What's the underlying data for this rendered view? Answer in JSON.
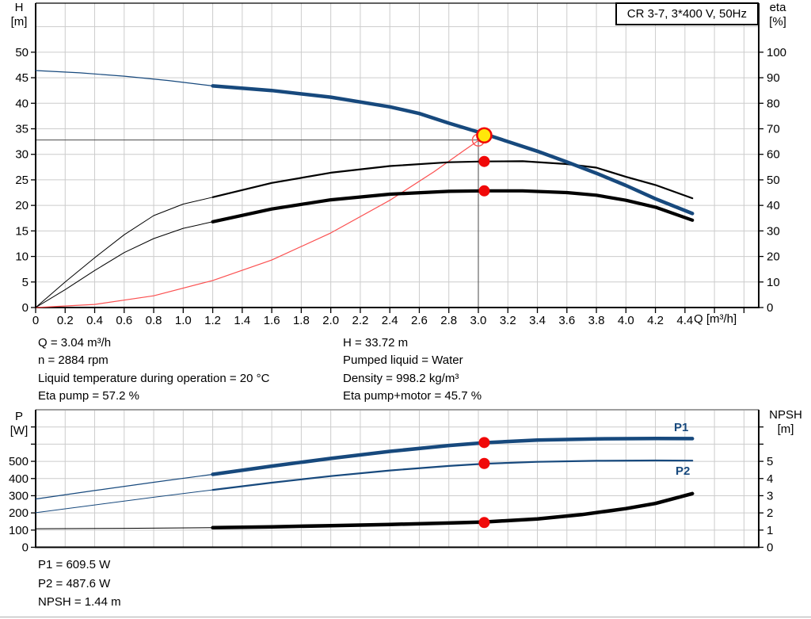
{
  "title_box": {
    "label": "CR 3-7, 3*400 V, 50Hz"
  },
  "annotations": {
    "left": [
      "Q = 3.04 m³/h",
      "n = 2884 rpm",
      "Liquid temperature during operation = 20 °C",
      "Eta pump = 57.2 %"
    ],
    "right": [
      "H = 33.72 m",
      "Pumped liquid = Water",
      "Density = 998.2 kg/m³",
      "Eta pump+motor = 45.7 %"
    ],
    "bottom": [
      "P1 = 609.5 W",
      "P2 = 487.6 W",
      "NPSH = 1.44 m"
    ]
  },
  "colors": {
    "curve_blue": "#17497d",
    "curve_black": "#000000",
    "marker_red": "#f00808",
    "system_red": "#fb5050",
    "duty_yellow": "#ffe60a",
    "grid_gray": "#cccccc",
    "crosshair_gray": "#4a4a4a"
  },
  "chart_data": [
    {
      "id": "top",
      "type": "line",
      "title": "CR 3-7, 3*400 V, 50Hz",
      "x_axis": {
        "label": "Q [m³/h]",
        "min": 0,
        "max": 4.9,
        "show_labels": true,
        "grid": true,
        "ticks": [
          [
            0,
            "0"
          ],
          [
            0.2,
            "0.2"
          ],
          [
            0.4,
            "0.4"
          ],
          [
            0.6,
            "0.6"
          ],
          [
            0.8,
            "0.8"
          ],
          [
            1,
            "1.0"
          ],
          [
            1.2,
            "1.2"
          ],
          [
            1.4,
            "1.4"
          ],
          [
            1.6,
            "1.6"
          ],
          [
            1.8,
            "1.8"
          ],
          [
            2,
            "2.0"
          ],
          [
            2.2,
            "2.2"
          ],
          [
            2.4,
            "2.4"
          ],
          [
            2.6,
            "2.6"
          ],
          [
            2.8,
            "2.8"
          ],
          [
            3,
            "3.0"
          ],
          [
            3.2,
            "3.2"
          ],
          [
            3.4,
            "3.4"
          ],
          [
            3.6,
            "3.6"
          ],
          [
            3.8,
            "3.8"
          ],
          [
            4,
            "4.0"
          ],
          [
            4.2,
            "4.2"
          ],
          [
            4.4,
            "4.4"
          ],
          [
            4.6,
            ""
          ],
          [
            4.8,
            ""
          ]
        ]
      },
      "y_left": {
        "label": "H [m]",
        "min": 0,
        "max": 59.6,
        "ticks": [
          [
            0,
            "0"
          ],
          [
            5,
            "5"
          ],
          [
            10,
            "10"
          ],
          [
            15,
            "15"
          ],
          [
            20,
            "20"
          ],
          [
            25,
            "25"
          ],
          [
            30,
            "30"
          ],
          [
            35,
            "35"
          ],
          [
            40,
            "40"
          ],
          [
            45,
            "45"
          ],
          [
            50,
            "50"
          ]
        ],
        "grid_extra": [
          55
        ]
      },
      "y_right": {
        "label": "eta [%]",
        "min": 0,
        "max": 119.2,
        "ticks": [
          [
            0,
            "0"
          ],
          [
            10,
            "10"
          ],
          [
            20,
            "20"
          ],
          [
            30,
            "30"
          ],
          [
            40,
            "40"
          ],
          [
            50,
            "50"
          ],
          [
            60,
            "60"
          ],
          [
            70,
            "70"
          ],
          [
            80,
            "80"
          ],
          [
            90,
            "90"
          ],
          [
            100,
            "100"
          ]
        ]
      },
      "crosshair": {
        "q": 3.0,
        "value": 32.8
      },
      "series": [
        {
          "name": "system-curve",
          "axis": "left",
          "color": "#fb5050",
          "segments": [
            {
              "w": 1.2,
              "pts": [
                [
                  0,
                  0
                ],
                [
                  0.4,
                  0.6
                ],
                [
                  0.8,
                  2.3
                ],
                [
                  1.2,
                  5.3
                ],
                [
                  1.6,
                  9.3
                ],
                [
                  2.0,
                  14.6
                ],
                [
                  2.4,
                  21.0
                ],
                [
                  2.7,
                  26.6
                ],
                [
                  2.9,
                  30.7
                ],
                [
                  3.02,
                  33.1
                ]
              ]
            }
          ]
        },
        {
          "name": "eta-pump-curve",
          "axis": "right",
          "color": "#000000",
          "segments": [
            {
              "w": 1,
              "pts": [
                [
                  0,
                  0
                ],
                [
                  0.2,
                  10
                ],
                [
                  0.4,
                  19.5
                ],
                [
                  0.6,
                  28.5
                ],
                [
                  0.8,
                  36
                ],
                [
                  1.0,
                  40.5
                ],
                [
                  1.2,
                  43.2
                ]
              ]
            },
            {
              "w": 2.2,
              "pts": [
                [
                  1.2,
                  43.2
                ],
                [
                  1.6,
                  48.8
                ],
                [
                  2.0,
                  52.8
                ],
                [
                  2.4,
                  55.4
                ],
                [
                  2.8,
                  56.9
                ],
                [
                  3.04,
                  57.2
                ],
                [
                  3.3,
                  57.3
                ],
                [
                  3.6,
                  56.2
                ],
                [
                  3.8,
                  54.8
                ],
                [
                  4.0,
                  51.2
                ],
                [
                  4.2,
                  48.0
                ],
                [
                  4.45,
                  42.8
                ]
              ]
            }
          ]
        },
        {
          "name": "eta-pump-motor-curve",
          "axis": "right",
          "color": "#000000",
          "segments": [
            {
              "w": 1,
              "pts": [
                [
                  0,
                  0
                ],
                [
                  0.2,
                  7
                ],
                [
                  0.4,
                  14.5
                ],
                [
                  0.6,
                  21.5
                ],
                [
                  0.8,
                  27
                ],
                [
                  1.0,
                  31
                ],
                [
                  1.2,
                  33.6
                ]
              ]
            },
            {
              "w": 4.2,
              "pts": [
                [
                  1.2,
                  33.6
                ],
                [
                  1.6,
                  38.6
                ],
                [
                  2.0,
                  42.2
                ],
                [
                  2.4,
                  44.4
                ],
                [
                  2.8,
                  45.5
                ],
                [
                  3.04,
                  45.7
                ],
                [
                  3.3,
                  45.7
                ],
                [
                  3.6,
                  45.0
                ],
                [
                  3.8,
                  44.0
                ],
                [
                  4.0,
                  42.0
                ],
                [
                  4.2,
                  39.3
                ],
                [
                  4.45,
                  34.2
                ]
              ]
            }
          ]
        },
        {
          "name": "qh-curve",
          "axis": "left",
          "color": "#17497d",
          "segments": [
            {
              "w": 1.2,
              "pts": [
                [
                  0,
                  46.4
                ],
                [
                  0.3,
                  45.95
                ],
                [
                  0.6,
                  45.3
                ],
                [
                  0.9,
                  44.45
                ],
                [
                  1.2,
                  43.4
                ]
              ]
            },
            {
              "w": 4.5,
              "pts": [
                [
                  1.2,
                  43.4
                ],
                [
                  1.6,
                  42.5
                ],
                [
                  2.0,
                  41.2
                ],
                [
                  2.4,
                  39.3
                ],
                [
                  2.6,
                  38.0
                ],
                [
                  2.8,
                  36.1
                ],
                [
                  3.04,
                  34.0
                ],
                [
                  3.2,
                  32.5
                ],
                [
                  3.4,
                  30.6
                ],
                [
                  3.6,
                  28.5
                ],
                [
                  3.8,
                  26.3
                ],
                [
                  4.0,
                  23.9
                ],
                [
                  4.2,
                  21.3
                ],
                [
                  4.45,
                  18.4
                ]
              ]
            }
          ]
        }
      ],
      "markers": [
        {
          "name": "eta-pump-point",
          "shape": "dot",
          "q": 3.04,
          "value": 57.2,
          "axis": "right",
          "r": 7,
          "fill": "#f00808"
        },
        {
          "name": "eta-pump-motor-point",
          "shape": "dot",
          "q": 3.04,
          "value": 45.7,
          "axis": "right",
          "r": 7,
          "fill": "#f00808"
        },
        {
          "name": "system-duty-circle",
          "shape": "open",
          "q": 3.0,
          "value": 32.8,
          "axis": "left",
          "r": 7.5,
          "stroke": "#fb5050"
        },
        {
          "name": "duty-point",
          "shape": "duty",
          "q": 3.04,
          "value": 33.72,
          "axis": "left",
          "r": 9,
          "fill": "#ffe60a",
          "stroke": "#f00808"
        }
      ]
    },
    {
      "id": "bottom",
      "type": "line",
      "x_axis": {
        "label": "",
        "min": 0,
        "max": 4.9,
        "show_labels": false,
        "grid": true,
        "ticks": [
          [
            0,
            ""
          ],
          [
            0.2,
            ""
          ],
          [
            0.4,
            ""
          ],
          [
            0.6,
            ""
          ],
          [
            0.8,
            ""
          ],
          [
            1,
            ""
          ],
          [
            1.2,
            ""
          ],
          [
            1.4,
            ""
          ],
          [
            1.6,
            ""
          ],
          [
            1.8,
            ""
          ],
          [
            2,
            ""
          ],
          [
            2.2,
            ""
          ],
          [
            2.4,
            ""
          ],
          [
            2.6,
            ""
          ],
          [
            2.8,
            ""
          ],
          [
            3,
            ""
          ],
          [
            3.2,
            ""
          ],
          [
            3.4,
            ""
          ],
          [
            3.6,
            ""
          ],
          [
            3.8,
            ""
          ],
          [
            4,
            ""
          ],
          [
            4.2,
            ""
          ],
          [
            4.4,
            ""
          ],
          [
            4.6,
            ""
          ],
          [
            4.8,
            ""
          ]
        ]
      },
      "y_left": {
        "label": "P [W]",
        "min": 0,
        "max": 800,
        "ticks": [
          [
            0,
            "0"
          ],
          [
            100,
            "100"
          ],
          [
            200,
            "200"
          ],
          [
            300,
            "300"
          ],
          [
            400,
            "400"
          ],
          [
            500,
            "500"
          ],
          [
            600,
            ""
          ],
          [
            700,
            ""
          ]
        ],
        "grid_extra": []
      },
      "y_right": {
        "label": "NPSH [m]",
        "min": 0,
        "max": 8,
        "ticks": [
          [
            0,
            "0"
          ],
          [
            1,
            "1"
          ],
          [
            2,
            "2"
          ],
          [
            3,
            "3"
          ],
          [
            4,
            "4"
          ],
          [
            5,
            "5"
          ],
          [
            6,
            ""
          ],
          [
            7,
            ""
          ]
        ]
      },
      "curve_labels": {
        "p1": "P1",
        "p2": "P2"
      },
      "series": [
        {
          "name": "p1-curve",
          "axis": "left",
          "color": "#17497d",
          "segments": [
            {
              "w": 1.2,
              "pts": [
                [
                  0,
                  281
                ],
                [
                  0.4,
                  330
                ],
                [
                  0.8,
                  378
                ],
                [
                  1.2,
                  424
                ]
              ]
            },
            {
              "w": 4.5,
              "pts": [
                [
                  1.2,
                  424
                ],
                [
                  1.6,
                  472
                ],
                [
                  2.0,
                  517
                ],
                [
                  2.4,
                  558
                ],
                [
                  2.8,
                  592
                ],
                [
                  3.04,
                  608
                ],
                [
                  3.4,
                  624
                ],
                [
                  3.8,
                  631
                ],
                [
                  4.2,
                  633
                ],
                [
                  4.45,
                  632
                ]
              ]
            }
          ]
        },
        {
          "name": "p2-curve",
          "axis": "left",
          "color": "#17497d",
          "segments": [
            {
              "w": 1,
              "pts": [
                [
                  0,
                  201
                ],
                [
                  0.4,
                  246
                ],
                [
                  0.8,
                  291
                ],
                [
                  1.2,
                  334
                ]
              ]
            },
            {
              "w": 2.2,
              "pts": [
                [
                  1.2,
                  334
                ],
                [
                  1.6,
                  376
                ],
                [
                  2.0,
                  414
                ],
                [
                  2.4,
                  447
                ],
                [
                  2.8,
                  473
                ],
                [
                  3.04,
                  486
                ],
                [
                  3.4,
                  497
                ],
                [
                  3.8,
                  503
                ],
                [
                  4.2,
                  505
                ],
                [
                  4.45,
                  504
                ]
              ]
            }
          ]
        },
        {
          "name": "npsh-curve",
          "axis": "right",
          "color": "#000000",
          "segments": [
            {
              "w": 1,
              "pts": [
                [
                  0,
                  1.08
                ],
                [
                  0.6,
                  1.1
                ],
                [
                  1.2,
                  1.14
                ]
              ]
            },
            {
              "w": 4.5,
              "pts": [
                [
                  1.2,
                  1.14
                ],
                [
                  1.6,
                  1.19
                ],
                [
                  2.0,
                  1.26
                ],
                [
                  2.4,
                  1.33
                ],
                [
                  2.8,
                  1.41
                ],
                [
                  3.04,
                  1.47
                ],
                [
                  3.4,
                  1.65
                ],
                [
                  3.7,
                  1.9
                ],
                [
                  4.0,
                  2.25
                ],
                [
                  4.2,
                  2.55
                ],
                [
                  4.45,
                  3.12
                ]
              ]
            }
          ]
        }
      ],
      "markers": [
        {
          "name": "p1-point",
          "shape": "dot",
          "q": 3.04,
          "value": 609.5,
          "axis": "left",
          "r": 7,
          "fill": "#f00808"
        },
        {
          "name": "p2-point",
          "shape": "dot",
          "q": 3.04,
          "value": 487.6,
          "axis": "left",
          "r": 7,
          "fill": "#f00808"
        },
        {
          "name": "npsh-point",
          "shape": "dot",
          "q": 3.04,
          "value": 1.44,
          "axis": "right",
          "r": 7,
          "fill": "#f00808"
        }
      ]
    }
  ],
  "axis_titles": {
    "h_line1": "H",
    "h_line2": "[m]",
    "eta_line1": "eta",
    "eta_line2": "[%]",
    "q": "Q [m³/h]",
    "p_line1": "P",
    "p_line2": "[W]",
    "npsh_line1": "NPSH",
    "npsh_line2": "[m]"
  }
}
